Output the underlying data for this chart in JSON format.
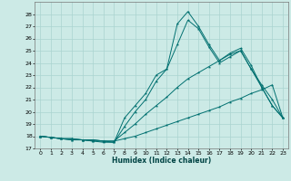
{
  "xlabel": "Humidex (Indice chaleur)",
  "ylabel": "",
  "background_color": "#cceae6",
  "grid_color": "#aad4d0",
  "line_color": "#007070",
  "xlim": [
    -0.5,
    23.5
  ],
  "ylim": [
    17,
    29
  ],
  "xticks": [
    0,
    1,
    2,
    3,
    4,
    5,
    6,
    7,
    8,
    9,
    10,
    11,
    12,
    13,
    14,
    15,
    16,
    17,
    18,
    19,
    20,
    21,
    22,
    23
  ],
  "yticks": [
    17,
    18,
    19,
    20,
    21,
    22,
    23,
    24,
    25,
    26,
    27,
    28
  ],
  "series": [
    {
      "x": [
        0,
        1,
        2,
        3,
        4,
        5,
        6,
        7,
        8,
        9,
        10,
        11,
        12,
        13,
        14,
        15,
        16,
        17,
        18,
        19,
        20,
        21,
        22,
        23
      ],
      "y": [
        18,
        17.9,
        17.8,
        17.8,
        17.7,
        17.7,
        17.6,
        17.6,
        17.8,
        18.0,
        18.3,
        18.6,
        18.9,
        19.2,
        19.5,
        19.8,
        20.1,
        20.4,
        20.8,
        21.1,
        21.5,
        21.8,
        22.2,
        19.5
      ]
    },
    {
      "x": [
        0,
        1,
        2,
        3,
        4,
        5,
        6,
        7,
        8,
        9,
        10,
        11,
        12,
        13,
        14,
        15,
        16,
        17,
        18,
        19,
        20,
        21,
        22,
        23
      ],
      "y": [
        18,
        17.9,
        17.8,
        17.8,
        17.7,
        17.7,
        17.6,
        17.6,
        18.3,
        19.0,
        19.8,
        20.5,
        21.2,
        22.0,
        22.7,
        23.2,
        23.7,
        24.2,
        24.7,
        25.0,
        23.5,
        22.2,
        21.0,
        19.5
      ]
    },
    {
      "x": [
        0,
        1,
        2,
        3,
        4,
        5,
        6,
        7,
        8,
        9,
        10,
        11,
        12,
        13,
        14,
        15,
        16,
        17,
        18,
        19,
        20,
        21,
        22,
        23
      ],
      "y": [
        18,
        17.9,
        17.8,
        17.7,
        17.7,
        17.6,
        17.6,
        17.5,
        18.8,
        20.0,
        21.0,
        22.5,
        23.5,
        25.5,
        27.5,
        26.8,
        25.3,
        24.0,
        24.5,
        25.0,
        23.5,
        22.0,
        20.5,
        19.5
      ]
    },
    {
      "x": [
        0,
        1,
        2,
        3,
        4,
        5,
        6,
        7,
        8,
        9,
        10,
        11,
        12,
        13,
        14,
        15,
        16,
        17,
        18,
        19,
        20,
        21,
        22,
        23
      ],
      "y": [
        18,
        17.9,
        17.8,
        17.7,
        17.7,
        17.6,
        17.5,
        17.5,
        19.5,
        20.5,
        21.5,
        23.0,
        23.5,
        27.2,
        28.2,
        27.0,
        25.5,
        24.2,
        24.8,
        25.2,
        23.8,
        22.0,
        20.5,
        19.5
      ]
    }
  ]
}
